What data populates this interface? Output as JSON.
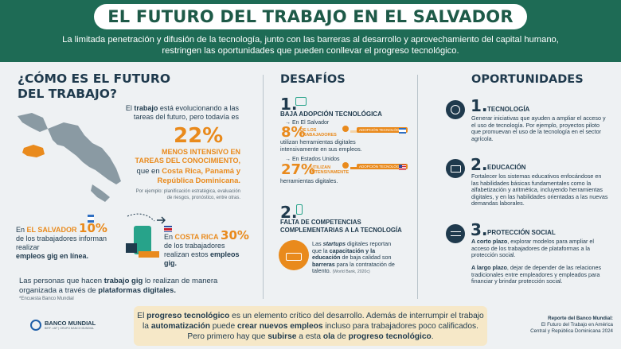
{
  "header": {
    "title": "EL FUTURO DEL TRABAJO EN EL SALVADOR",
    "subtitle_line1": "La limitada penetración y difusión de la tecnología, junto con las barreras al desarrollo y aprovechamiento del capital humano,",
    "subtitle_line2": "restringen las oportunidades que pueden conllevar el progreso tecnológico."
  },
  "left": {
    "heading_line1": "¿CÓMO ES EL FUTURO",
    "heading_line2": "DEL TRABAJO?",
    "intro_pre": "El ",
    "intro_bold": "trabajo",
    "intro_post": " está evolucionando a las tareas del futuro, pero todavía es",
    "pct": "22%",
    "pct_label_line1": "MENOS INTENSIVO EN",
    "pct_label_line2": "TAREAS DEL CONOCIMIENTO,",
    "que_en": "que en ",
    "countries": "Costa Rica, Panamá y República Dominicana.",
    "example_note": "Por ejemplo: planificación estratégica, evaluación de riesgos, pronóstico, entre otras.",
    "sv_pre": "En ",
    "sv_country": "EL SALVADOR",
    "sv_pct": "10%",
    "sv_text": "de los trabajadores informan realizar",
    "sv_bold": "empleos gig en línea.",
    "cr_pre": "En ",
    "cr_country": "COSTA RICA",
    "cr_pct": "30%",
    "cr_text": "de los trabajadores realizan estos",
    "cr_bold": "empleos gig.",
    "gig_pre": "Las personas que hacen ",
    "gig_bold1": "trabajo gig",
    "gig_mid": " lo realizan de manera organizada a través de ",
    "gig_bold2": "plataformas digitales.",
    "source": "*Encuesta Banco Mundial",
    "logo_text": "BANCO MUNDIAL",
    "logo_sub": "BIRF • AIF | GRUPO BANCO MUNDIAL"
  },
  "middle": {
    "heading": "DESAFÍOS",
    "c1_num": "1.",
    "c1_title": "BAJA ADOPCIÓN TECNOLÓGICA",
    "sv_label": "→ En El Salvador",
    "sv_pct": "8%",
    "sv_pct_label": "DE LOS TRABAJADORES",
    "sv_text": "utilizan herramientas digitales intensivamente en sus  empleos.",
    "tag_label": "ADOPCIÓN TECNOLÓGICA",
    "us_label": "→ En Estados Unidos",
    "us_pct": "27%",
    "us_pct_label": "UTILIZAN INTENSIVAMENTE",
    "us_text": "herramientas digitales.",
    "c2_num": "2.",
    "c2_title_line1": "FALTA DE COMPETENCIAS",
    "c2_title_line2": "COMPLEMENTARIAS A LA TECNOLOGÍA",
    "c2_pre": "Las ",
    "c2_bold1": "startups",
    "c2_mid1": " digitales reportan que la ",
    "c2_bold2": "capacitación y la educación",
    "c2_mid2": " de baja calidad son ",
    "c2_bold3": "barreras",
    "c2_post": " para la contratación de talento.",
    "c2_src": "(World Bank, 2020c)"
  },
  "right": {
    "heading": "OPORTUNIDADES",
    "o1_num": "1.",
    "o1_title": "TECNOLOGÍA",
    "o1_text": "Generar iniciativas que ayuden a ampliar el acceso y el uso de tecnología. Por ejemplo, proyectos piloto que promuevan el uso de la tecnología en el sector agrícola.",
    "o2_num": "2.",
    "o2_title": "EDUCACIÓN",
    "o2_text": "Fortalecer los sistemas educativos enfocándose en las habilidades básicas fundamentales como la alfabetización y aritmética, incluyendo herramientas digitales, y en las habilidades orientadas a las nuevas demandas laborales.",
    "o3_num": "3.",
    "o3_title": "PROTECCIÓN SOCIAL",
    "o3_a_bold": "A corto plazo",
    "o3_a_text": ", explorar modelos para ampliar el acceso de los trabajadores de plataformas a la protección social.",
    "o3_b_bold": "A largo plazo",
    "o3_b_text": ", dejar de depender de las relaciones tradicionales entre empleadores y empleados para financiar y brindar protección social."
  },
  "bottom": {
    "l1_pre": "El ",
    "l1_bold": "progreso tecnológico",
    "l1_post": " es un elemento crítico del desarrollo. Además de interrumpir el trabajo",
    "l2_pre": "la ",
    "l2_bold1": "automatización",
    "l2_mid": " puede ",
    "l2_bold2": "crear nuevos empleos",
    "l2_post": " incluso para trabajadores poco calificados.",
    "l3_pre": "Pero primero hay que ",
    "l3_bold1": "subirse",
    "l3_mid": " a esta ",
    "l3_bold2": "ola",
    "l3_mid2": " de ",
    "l3_bold3": "progreso tecnológico",
    "l3_post": ".",
    "report_title": "Reporte del Banco Mundial:",
    "report_line1": "El Futuro del Trabajo en América",
    "report_line2": "Central y República Dominicana 2024"
  },
  "colors": {
    "brand_green": "#1e6b55",
    "accent_orange": "#e98a1c",
    "navy": "#1f3a4d",
    "bottom_box": "#f6e8c8"
  }
}
